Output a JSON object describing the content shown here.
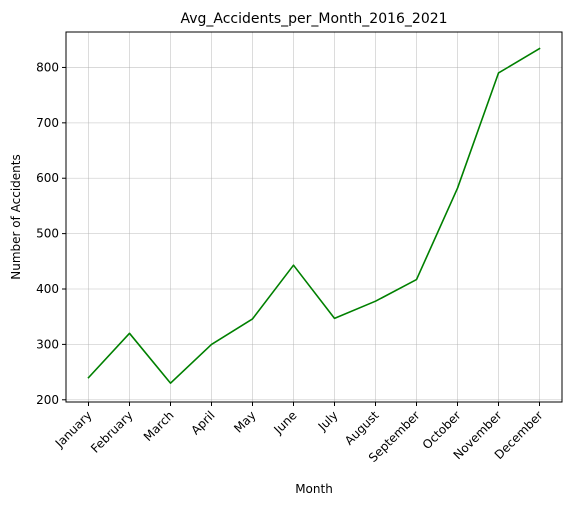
{
  "chart_data": {
    "type": "line",
    "title": "Avg_Accidents_per_Month_2016_2021",
    "xlabel": "Month",
    "ylabel": "Number of Accidents",
    "categories": [
      "January",
      "February",
      "March",
      "April",
      "May",
      "June",
      "July",
      "August",
      "September",
      "October",
      "November",
      "December"
    ],
    "series": [
      {
        "values": [
          240,
          320,
          230,
          300,
          346,
          443,
          347,
          378,
          417,
          582,
          790,
          834
        ],
        "color": "#008000"
      }
    ],
    "ylim": [
      196,
      864
    ],
    "yticks": [
      200,
      300,
      400,
      500,
      600,
      700,
      800
    ],
    "grid": true,
    "legend": "none",
    "xtick_rotation": 45
  }
}
